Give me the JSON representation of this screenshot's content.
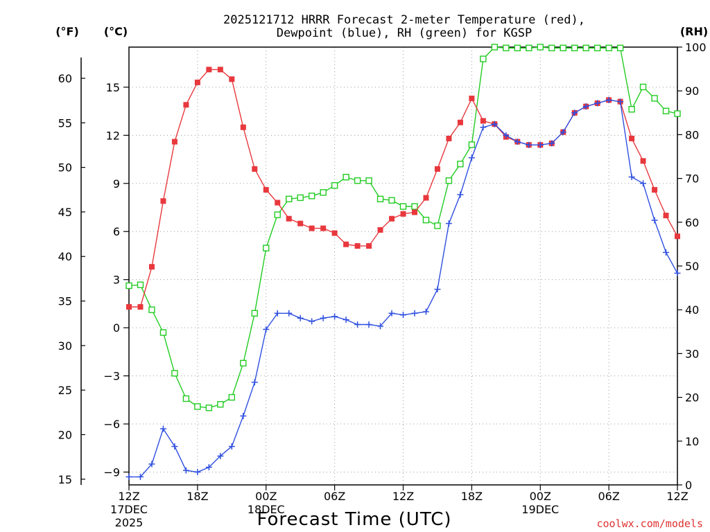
{
  "chart_data": {
    "type": "line",
    "title_line1": "2025121712 HRRR Forecast 2-meter Temperature (red),",
    "title_line2": "Dewpoint (blue), RH (green) for KGSP",
    "xlabel": "Forecast Time (UTC)",
    "credit": "coolwx.com/models",
    "unit_f": "(°F)",
    "unit_c": "(°C)",
    "unit_rh": "(RH)",
    "colors": {
      "temperature": "#e8383d",
      "dewpoint": "#2e4fe0",
      "rh": "#22cc22",
      "credit": "#e03030"
    },
    "x_hours": [
      0,
      1,
      2,
      3,
      4,
      5,
      6,
      7,
      8,
      9,
      10,
      11,
      12,
      13,
      14,
      15,
      16,
      17,
      18,
      19,
      20,
      21,
      22,
      23,
      24,
      25,
      26,
      27,
      28,
      29,
      30,
      31,
      32,
      33,
      34,
      35,
      36,
      37,
      38,
      39,
      40,
      41,
      42,
      43,
      44,
      45,
      46,
      47,
      48
    ],
    "xlim_hours": [
      0,
      48
    ],
    "celsius_axis": {
      "range": [
        -9.8,
        17.5
      ],
      "ticks": [
        -9,
        -6,
        -3,
        0,
        3,
        6,
        9,
        12,
        15
      ]
    },
    "fahrenheit_axis": {
      "ticks": [
        15,
        20,
        25,
        30,
        35,
        40,
        45,
        50,
        55,
        60
      ]
    },
    "rh_axis": {
      "range": [
        0,
        100
      ],
      "ticks": [
        0,
        10,
        20,
        30,
        40,
        50,
        60,
        70,
        80,
        90,
        100
      ]
    },
    "x_ticks": [
      {
        "hour": 0,
        "label": "12Z",
        "date": "17DEC",
        "year": "2025"
      },
      {
        "hour": 6,
        "label": "18Z",
        "date": "",
        "year": ""
      },
      {
        "hour": 12,
        "label": "00Z",
        "date": "18DEC",
        "year": ""
      },
      {
        "hour": 18,
        "label": "06Z",
        "date": "",
        "year": ""
      },
      {
        "hour": 24,
        "label": "12Z",
        "date": "",
        "year": ""
      },
      {
        "hour": 30,
        "label": "18Z",
        "date": "",
        "year": ""
      },
      {
        "hour": 36,
        "label": "00Z",
        "date": "19DEC",
        "year": ""
      },
      {
        "hour": 42,
        "label": "06Z",
        "date": "",
        "year": ""
      },
      {
        "hour": 48,
        "label": "12Z",
        "date": "",
        "year": ""
      }
    ],
    "series": [
      {
        "name": "Temperature (°C)",
        "axis": "celsius",
        "marker": "filled-square",
        "values": [
          1.3,
          1.3,
          3.8,
          7.9,
          11.6,
          13.9,
          15.3,
          16.1,
          16.1,
          15.5,
          12.5,
          9.9,
          8.6,
          7.8,
          6.8,
          6.5,
          6.2,
          6.2,
          5.9,
          5.2,
          5.1,
          5.1,
          6.1,
          6.8,
          7.1,
          7.2,
          8.1,
          9.9,
          11.8,
          12.8,
          14.3,
          12.9,
          12.7,
          11.9,
          11.6,
          11.4,
          11.4,
          11.5,
          12.2,
          13.4,
          13.8,
          14.0,
          14.2,
          14.1,
          11.8,
          10.4,
          8.6,
          7.0,
          5.7
        ]
      },
      {
        "name": "Dewpoint (°C)",
        "axis": "celsius",
        "marker": "plus",
        "values": [
          -9.3,
          -9.3,
          -8.5,
          -6.3,
          -7.4,
          -8.9,
          -9.0,
          -8.7,
          -8.0,
          -7.4,
          -5.5,
          -3.4,
          -0.1,
          0.9,
          0.9,
          0.6,
          0.4,
          0.6,
          0.7,
          0.5,
          0.2,
          0.2,
          0.1,
          0.9,
          0.8,
          0.9,
          1.0,
          2.4,
          6.5,
          8.3,
          10.6,
          12.5,
          12.7,
          12.0,
          11.6,
          11.4,
          11.4,
          11.5,
          12.2,
          13.4,
          13.8,
          14.0,
          14.2,
          14.1,
          9.4,
          9.0,
          6.7,
          4.7,
          3.4
        ]
      },
      {
        "name": "RH (%)",
        "axis": "rh",
        "marker": "open-square",
        "values": [
          45.5,
          45.7,
          40.0,
          34.8,
          25.5,
          19.7,
          17.9,
          17.6,
          18.4,
          20.0,
          27.8,
          39.2,
          54.1,
          61.7,
          65.3,
          65.6,
          66.0,
          66.8,
          68.4,
          70.3,
          69.5,
          69.5,
          65.3,
          65.0,
          63.6,
          63.6,
          60.5,
          59.2,
          69.5,
          73.3,
          77.7,
          97.3,
          100.0,
          99.8,
          99.8,
          99.8,
          100.0,
          99.8,
          99.8,
          99.8,
          99.8,
          99.8,
          99.8,
          99.8,
          85.8,
          90.9,
          88.3,
          85.4,
          84.8
        ]
      }
    ]
  }
}
